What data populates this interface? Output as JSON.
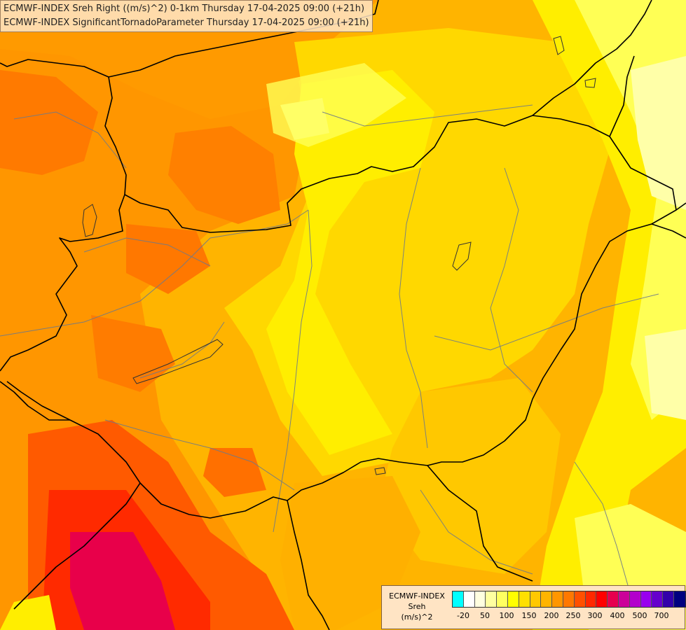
{
  "title": {
    "line1": "ECMWF-INDEX Sreh Right ((m/s)^2) 0-1km Thursday 17-04-2025 09:00 (+21h)",
    "line2": "ECMWF-INDEX SignificantTornadoParameter Thursday 17-04-2025 09:00 (+21h)"
  },
  "legend": {
    "title_line1": "ECMWF-INDEX",
    "title_line2": "Sreh",
    "title_line3": "(m/s)^2",
    "colors": [
      "#00ffff",
      "#ffffff",
      "#ffffe0",
      "#ffffa0",
      "#ffff60",
      "#ffff00",
      "#ffe000",
      "#ffc800",
      "#ffb400",
      "#ff9600",
      "#ff7800",
      "#ff5000",
      "#ff2800",
      "#ff0000",
      "#e6004e",
      "#cc0099",
      "#b300cc",
      "#9900ee",
      "#6600cc",
      "#3300aa",
      "#000080"
    ],
    "ticks": [
      "-20",
      "50",
      "100",
      "150",
      "200",
      "250",
      "300",
      "400",
      "500",
      "700"
    ]
  },
  "map_colors": {
    "pale": "#ffffa8",
    "light_yellow": "#ffff55",
    "yellow": "#ffee00",
    "gold": "#ffc800",
    "amber": "#ffb000",
    "orange": "#ff9600",
    "dark_orange": "#ff7000",
    "red_orange": "#ff4800",
    "red": "#ff1800",
    "crimson": "#e8004a",
    "border": "#000000",
    "river": "#6e7a8a"
  }
}
